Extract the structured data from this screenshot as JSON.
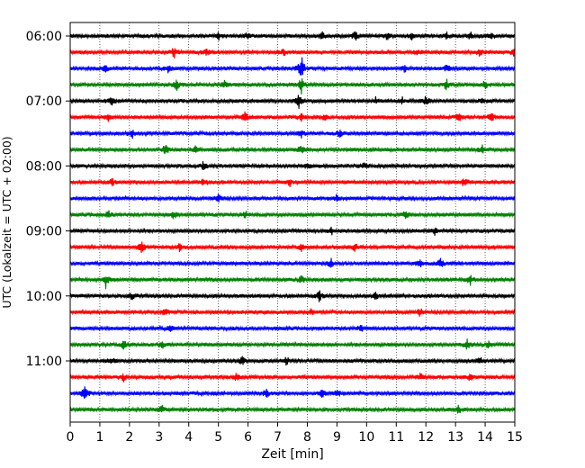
{
  "chart_data": {
    "type": "line",
    "subtype": "seismogram-helicorder",
    "title": "",
    "xlabel": "Zeit  [min]",
    "ylabel": "UTC (Lokalzeit = UTC + 02:00)",
    "xlim": [
      0,
      15
    ],
    "x_ticks": [
      0,
      1,
      2,
      3,
      4,
      5,
      6,
      7,
      8,
      9,
      10,
      11,
      12,
      13,
      14,
      15
    ],
    "y_ticks": [
      "06:00",
      "07:00",
      "08:00",
      "09:00",
      "10:00",
      "11:00"
    ],
    "grid": "vertical-dotted",
    "line_colors": [
      "#000000",
      "#ff0000",
      "#0000ff",
      "#008000"
    ],
    "trace_interval_minutes": 15,
    "traces": [
      {
        "start": "06:00",
        "color": "#000000",
        "events": [
          [
            5.0,
            4
          ],
          [
            6.0,
            4
          ],
          [
            8.5,
            5
          ],
          [
            9.6,
            5
          ],
          [
            10.7,
            4
          ],
          [
            11.5,
            4
          ],
          [
            12.7,
            4
          ],
          [
            13.5,
            4
          ],
          [
            14.2,
            4
          ]
        ]
      },
      {
        "start": "06:15",
        "color": "#ff0000",
        "events": [
          [
            3.5,
            6
          ],
          [
            4.6,
            4
          ],
          [
            7.2,
            4
          ],
          [
            11.7,
            4
          ],
          [
            13.8,
            4
          ],
          [
            15.0,
            5
          ]
        ]
      },
      {
        "start": "06:30",
        "color": "#0000ff",
        "events": [
          [
            1.2,
            4
          ],
          [
            3.3,
            4
          ],
          [
            7.8,
            16
          ],
          [
            11.3,
            4
          ],
          [
            12.7,
            4
          ]
        ]
      },
      {
        "start": "06:45",
        "color": "#008000",
        "events": [
          [
            3.6,
            7
          ],
          [
            5.2,
            4
          ],
          [
            7.8,
            9
          ],
          [
            12.7,
            6
          ],
          [
            14.0,
            5
          ]
        ]
      },
      {
        "start": "07:00",
        "color": "#000000",
        "events": [
          [
            1.4,
            4
          ],
          [
            7.7,
            8
          ],
          [
            10.3,
            4
          ],
          [
            11.2,
            4
          ],
          [
            12.0,
            5
          ],
          [
            13.9,
            4
          ]
        ]
      },
      {
        "start": "07:15",
        "color": "#ff0000",
        "events": [
          [
            1.3,
            5
          ],
          [
            5.9,
            6
          ],
          [
            7.8,
            4
          ],
          [
            8.6,
            4
          ],
          [
            13.1,
            4
          ],
          [
            14.2,
            6
          ]
        ]
      },
      {
        "start": "07:30",
        "color": "#0000ff",
        "events": [
          [
            2.1,
            4
          ],
          [
            7.8,
            4
          ],
          [
            9.1,
            4
          ]
        ]
      },
      {
        "start": "07:45",
        "color": "#008000",
        "events": [
          [
            3.2,
            6
          ],
          [
            4.2,
            4
          ],
          [
            7.8,
            4
          ],
          [
            13.9,
            5
          ]
        ]
      },
      {
        "start": "08:00",
        "color": "#000000",
        "events": [
          [
            4.5,
            5
          ],
          [
            8.0,
            4
          ],
          [
            9.9,
            4
          ]
        ]
      },
      {
        "start": "08:15",
        "color": "#ff0000",
        "events": [
          [
            1.4,
            4
          ],
          [
            4.5,
            6
          ],
          [
            7.4,
            4
          ],
          [
            13.3,
            5
          ]
        ]
      },
      {
        "start": "08:30",
        "color": "#0000ff",
        "events": [
          [
            5.0,
            4
          ],
          [
            9.0,
            4
          ]
        ]
      },
      {
        "start": "08:45",
        "color": "#008000",
        "events": [
          [
            1.3,
            4
          ],
          [
            3.5,
            5
          ],
          [
            5.9,
            4
          ],
          [
            11.3,
            4
          ]
        ]
      },
      {
        "start": "09:00",
        "color": "#000000",
        "events": [
          [
            8.8,
            4
          ],
          [
            12.3,
            4
          ]
        ]
      },
      {
        "start": "09:15",
        "color": "#ff0000",
        "events": [
          [
            2.4,
            6
          ],
          [
            3.7,
            4
          ],
          [
            7.8,
            4
          ],
          [
            9.6,
            4
          ]
        ]
      },
      {
        "start": "09:30",
        "color": "#0000ff",
        "events": [
          [
            8.8,
            5
          ],
          [
            11.8,
            4
          ],
          [
            12.5,
            5
          ]
        ]
      },
      {
        "start": "09:45",
        "color": "#008000",
        "events": [
          [
            1.2,
            9
          ],
          [
            7.8,
            4
          ],
          [
            13.5,
            5
          ]
        ]
      },
      {
        "start": "10:00",
        "color": "#000000",
        "events": [
          [
            2.1,
            4
          ],
          [
            8.4,
            6
          ],
          [
            10.3,
            4
          ]
        ]
      },
      {
        "start": "10:15",
        "color": "#ff0000",
        "events": [
          [
            3.2,
            5
          ],
          [
            8.1,
            4
          ],
          [
            11.8,
            4
          ]
        ]
      },
      {
        "start": "10:30",
        "color": "#0000ff",
        "events": [
          [
            3.4,
            4
          ],
          [
            9.8,
            4
          ]
        ]
      },
      {
        "start": "10:45",
        "color": "#008000",
        "events": [
          [
            1.8,
            5
          ],
          [
            3.1,
            5
          ],
          [
            13.4,
            6
          ],
          [
            14.1,
            4
          ]
        ]
      },
      {
        "start": "11:00",
        "color": "#000000",
        "events": [
          [
            1.4,
            4
          ],
          [
            5.8,
            4
          ],
          [
            7.3,
            4
          ],
          [
            13.8,
            5
          ]
        ]
      },
      {
        "start": "11:15",
        "color": "#ff0000",
        "events": [
          [
            1.8,
            4
          ],
          [
            5.6,
            4
          ],
          [
            11.8,
            4
          ],
          [
            13.5,
            4
          ]
        ]
      },
      {
        "start": "11:30",
        "color": "#0000ff",
        "events": [
          [
            0.5,
            10
          ],
          [
            6.6,
            5
          ],
          [
            8.5,
            4
          ],
          [
            9.0,
            4
          ]
        ]
      },
      {
        "start": "11:45",
        "color": "#008000",
        "events": [
          [
            3.1,
            4
          ],
          [
            13.1,
            4
          ]
        ]
      }
    ]
  }
}
